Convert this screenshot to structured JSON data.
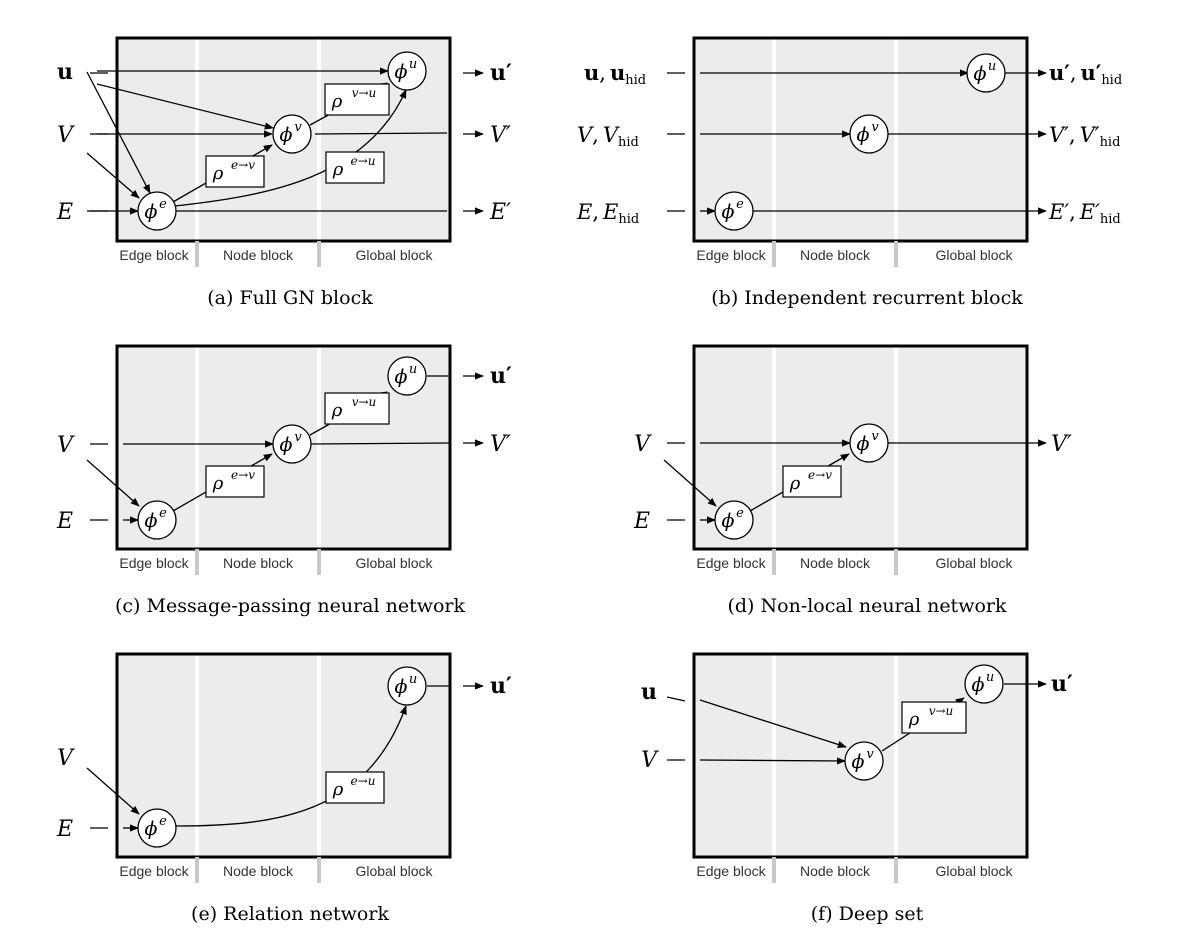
{
  "block_labels": {
    "edge": "Edge block",
    "node": "Node block",
    "global": "Global block"
  },
  "symbols": {
    "phi": "ϕ",
    "rho": "ρ",
    "e": "e",
    "v": "v",
    "u": "u",
    "e_to_v": "e→v",
    "e_to_u": "e→u",
    "v_to_u": "v→u",
    "u_in": "u",
    "V_in": "V",
    "E_in": "E",
    "u_out": "u′",
    "V_out": "V′",
    "E_out": "E′",
    "hid": "hid",
    "comma": ","
  },
  "panels": {
    "a": {
      "caption": "(a) Full GN block"
    },
    "b": {
      "caption": "(b) Independent recurrent block"
    },
    "c": {
      "caption": "(c) Message-passing neural network"
    },
    "d": {
      "caption": "(d) Non-local neural network"
    },
    "e": {
      "caption": "(e) Relation network"
    },
    "f": {
      "caption": "(f) Deep set"
    }
  },
  "colors": {
    "panel_fill": "#ececec",
    "divider": "#ffffff",
    "ink": "#000000"
  }
}
